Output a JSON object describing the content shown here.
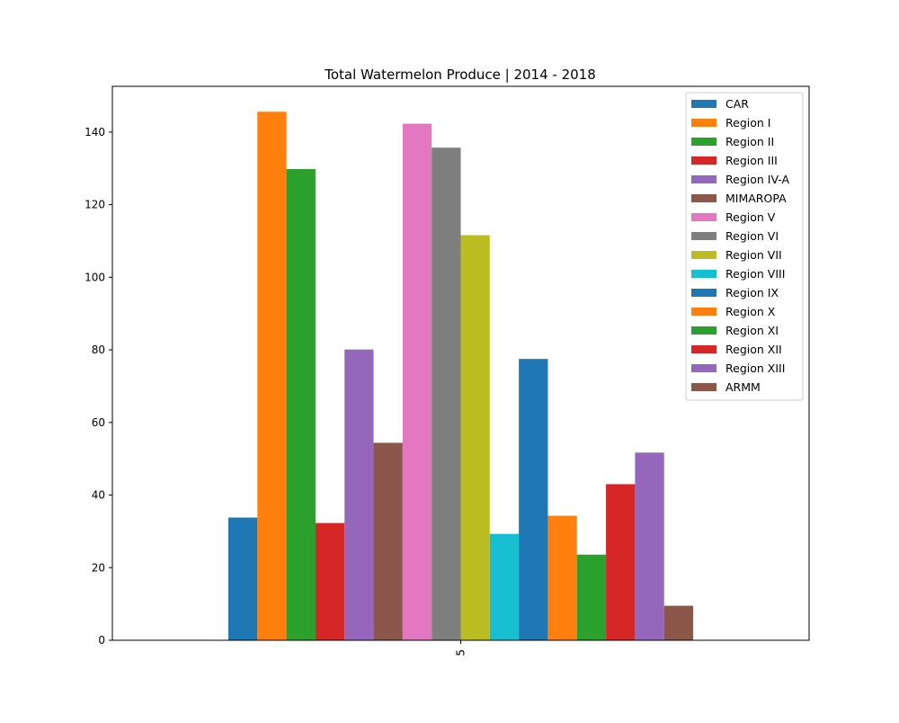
{
  "chart_data": {
    "type": "bar",
    "title": "Total Watermelon Produce | 2014 - 2018",
    "xlabel": "",
    "ylabel": "",
    "categories": [
      "5"
    ],
    "ylim": [
      0,
      152.6
    ],
    "yticks": [
      0,
      20,
      40,
      60,
      80,
      100,
      120,
      140
    ],
    "grid": false,
    "legend_position": "top-right",
    "series": [
      {
        "name": "CAR",
        "values": [
          33.8
        ],
        "color": "#1f77b4"
      },
      {
        "name": "Region I",
        "values": [
          145.6
        ],
        "color": "#ff7f0e"
      },
      {
        "name": "Region II",
        "values": [
          129.8
        ],
        "color": "#2ca02c"
      },
      {
        "name": "Region III",
        "values": [
          32.3
        ],
        "color": "#d62728"
      },
      {
        "name": "Region IV-A",
        "values": [
          80.1
        ],
        "color": "#9467bd"
      },
      {
        "name": "MIMAROPA",
        "values": [
          54.4
        ],
        "color": "#8c564b"
      },
      {
        "name": "Region V",
        "values": [
          142.3
        ],
        "color": "#e377c2"
      },
      {
        "name": "Region VI",
        "values": [
          135.7
        ],
        "color": "#7f7f7f"
      },
      {
        "name": "Region VII",
        "values": [
          111.6
        ],
        "color": "#bcbd22"
      },
      {
        "name": "Region VIII",
        "values": [
          29.3
        ],
        "color": "#17becf"
      },
      {
        "name": "Region IX",
        "values": [
          77.5
        ],
        "color": "#1f77b4"
      },
      {
        "name": "Region X",
        "values": [
          34.3
        ],
        "color": "#ff7f0e"
      },
      {
        "name": "Region XI",
        "values": [
          23.6
        ],
        "color": "#2ca02c"
      },
      {
        "name": "Region XII",
        "values": [
          43.0
        ],
        "color": "#d62728"
      },
      {
        "name": "Region XIII",
        "values": [
          51.7
        ],
        "color": "#9467bd"
      },
      {
        "name": "ARMM",
        "values": [
          9.5
        ],
        "color": "#8c564b"
      }
    ]
  }
}
